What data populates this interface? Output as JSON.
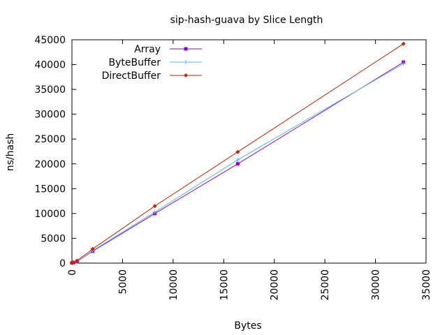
{
  "chart_data": {
    "type": "line",
    "title": "sip-hash-guava by Slice Length",
    "xlabel": "Bytes",
    "ylabel": "ns/hash",
    "xlim": [
      0,
      35000
    ],
    "ylim": [
      0,
      45000
    ],
    "xticks": [
      0,
      5000,
      10000,
      15000,
      20000,
      25000,
      30000,
      35000
    ],
    "yticks": [
      0,
      5000,
      10000,
      15000,
      20000,
      25000,
      30000,
      35000,
      40000,
      45000
    ],
    "grid": false,
    "legend_position": "top-left",
    "series": [
      {
        "name": "Array",
        "color": "#9400d3",
        "marker": "square",
        "points": [
          [
            0,
            50
          ],
          [
            128,
            110
          ],
          [
            512,
            330
          ],
          [
            2048,
            2400
          ],
          [
            8192,
            10000
          ],
          [
            16384,
            20000
          ],
          [
            32768,
            40500
          ]
        ]
      },
      {
        "name": "ByteBuffer",
        "color": "#56b4e9",
        "marker": "plus",
        "points": [
          [
            0,
            50
          ],
          [
            128,
            120
          ],
          [
            512,
            350
          ],
          [
            2048,
            2500
          ],
          [
            8192,
            10300
          ],
          [
            16384,
            20800
          ],
          [
            32768,
            40200
          ]
        ]
      },
      {
        "name": "DirectBuffer",
        "color": "#cc2200",
        "marker": "diamond",
        "points": [
          [
            0,
            60
          ],
          [
            128,
            140
          ],
          [
            512,
            500
          ],
          [
            2048,
            2850
          ],
          [
            8192,
            11500
          ],
          [
            16384,
            22400
          ],
          [
            32768,
            44200
          ]
        ]
      }
    ]
  }
}
